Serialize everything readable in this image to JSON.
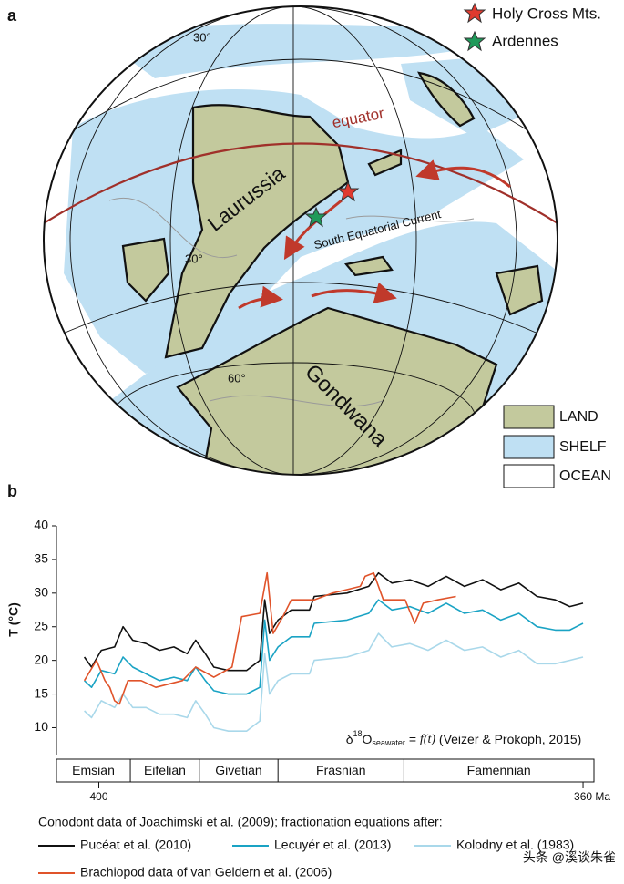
{
  "panel_labels": [
    "a",
    "b"
  ],
  "map": {
    "stars": [
      "Holy Cross Mts.",
      "Ardennes"
    ],
    "equator": "equator",
    "laurussia": "Laurussia",
    "current": "South Equatorial Current",
    "gondwana": "Gondwana",
    "latitudes": [
      "30°",
      "30°",
      "60°"
    ],
    "legend": [
      "LAND",
      "SHELF",
      "OCEAN"
    ]
  },
  "chart_data": {
    "type": "line",
    "y_label": "T (°C)",
    "xlim": [
      403.5,
      359.1
    ],
    "ylim": [
      6,
      40
    ],
    "xticks": [
      400,
      {
        "value": 360,
        "label": "360 Ma"
      }
    ],
    "yticks": [
      10,
      15,
      20,
      25,
      30,
      35,
      40
    ],
    "stages": [
      "Emsian",
      "Eifelian",
      "Givetian",
      "Frasnian",
      "Famennian"
    ],
    "stage_boundaries": [
      397.4,
      391.7,
      385.2,
      374.8
    ],
    "annotation": [
      "δ",
      "18",
      "O",
      "seawater",
      " = ",
      "f(t)",
      " (Veizer & Prokoph, 2015)"
    ],
    "legend_title": "Conodont data of Joachimski et al. (2009); fractionation equations after:",
    "series": [
      {
        "name": "Pucéat et al. (2010)",
        "color": "#111111",
        "x": [
          401.2,
          400.6,
          399.8,
          398.7,
          398.0,
          397.2,
          396.1,
          395.0,
          393.8,
          392.7,
          392.0,
          391.2,
          390.5,
          389.3,
          387.8,
          386.7,
          386.3,
          385.9,
          385.2,
          384.1,
          382.6,
          382.2,
          379.5,
          377.7,
          376.9,
          375.8,
          374.3,
          372.8,
          371.3,
          369.8,
          368.3,
          366.8,
          365.3,
          363.8,
          362.3,
          361.1,
          360.0
        ],
        "values": [
          20.5,
          19,
          21.5,
          22,
          25,
          23,
          22.5,
          21.5,
          22,
          21,
          23,
          21,
          19,
          18.5,
          18.5,
          20,
          29,
          24,
          26,
          27.5,
          27.5,
          29.5,
          30,
          31,
          33,
          31.5,
          32,
          31,
          32.5,
          31,
          32,
          30.5,
          31.5,
          29.5,
          29,
          28,
          28.5
        ]
      },
      {
        "name": "Lecuyér et al. (2013)",
        "color": "#1aa3c4",
        "x": [
          401.2,
          400.6,
          399.8,
          398.7,
          398.0,
          397.2,
          396.1,
          395.0,
          393.8,
          392.7,
          392.0,
          391.2,
          390.5,
          389.3,
          387.8,
          386.7,
          386.3,
          385.9,
          385.2,
          384.1,
          382.6,
          382.2,
          379.5,
          377.7,
          376.9,
          375.8,
          374.3,
          372.8,
          371.3,
          369.8,
          368.3,
          366.8,
          365.3,
          363.8,
          362.3,
          361.1,
          360.0
        ],
        "values": [
          17,
          16,
          18.5,
          18,
          20.5,
          19,
          18,
          17,
          17.5,
          17,
          19,
          17,
          15.5,
          15,
          15,
          16,
          26,
          20,
          22,
          23.5,
          23.5,
          25.5,
          26,
          27,
          29,
          27.5,
          28,
          27,
          28.5,
          27,
          27.5,
          26,
          27,
          25,
          24.5,
          24.5,
          25.5
        ]
      },
      {
        "name": "Kolodny et al. (1983)",
        "color": "#a9d8ea",
        "x": [
          401.2,
          400.6,
          399.8,
          398.7,
          398.0,
          397.2,
          396.1,
          395.0,
          393.8,
          392.7,
          392.0,
          391.2,
          390.5,
          389.3,
          387.8,
          386.7,
          386.3,
          385.9,
          385.2,
          384.1,
          382.6,
          382.2,
          379.5,
          377.7,
          376.9,
          375.8,
          374.3,
          372.8,
          371.3,
          369.8,
          368.3,
          366.8,
          365.3,
          363.8,
          362.3,
          361.1,
          360.0
        ],
        "values": [
          12.5,
          11.5,
          14,
          13,
          15,
          13,
          13,
          12,
          12,
          11.5,
          14,
          12,
          10,
          9.5,
          9.5,
          11,
          21,
          15,
          17,
          18,
          18,
          20,
          20.5,
          21.5,
          24,
          22,
          22.5,
          21.5,
          23,
          21.5,
          22,
          20.5,
          21.5,
          19.5,
          19.5,
          20,
          20.5
        ]
      },
      {
        "name": "Brachiopod data of van Geldern et al. (2006)",
        "color": "#e0532a",
        "x": [
          401.2,
          400.2,
          399.5,
          399.1,
          398.7,
          398.3,
          397.6,
          396.5,
          395.3,
          393.1,
          392.0,
          390.5,
          389.0,
          388.2,
          386.7,
          386.1,
          385.6,
          384.8,
          384.1,
          382.2,
          380.7,
          378.4,
          378.0,
          377.3,
          376.5,
          374.7,
          373.9,
          373.2,
          372.0,
          370.5
        ],
        "values": [
          17,
          20,
          17,
          16,
          14,
          13.5,
          17,
          17,
          16,
          17,
          19,
          17.5,
          19,
          26.5,
          27,
          33,
          24,
          26.5,
          29,
          29,
          30,
          31,
          32.5,
          33,
          29,
          29,
          25.5,
          28.5,
          29,
          29.5
        ]
      }
    ]
  },
  "watermark": "头条 @溪谈朱雀"
}
